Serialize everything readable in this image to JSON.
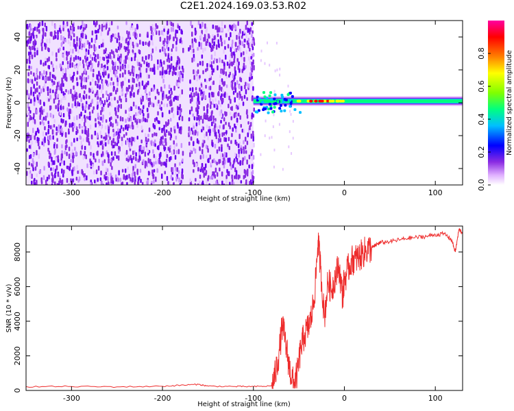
{
  "title": "C2E1.2024.169.03.53.R02",
  "chart_data": [
    {
      "type": "heatmap",
      "xlabel": "Height of straight line (km)",
      "ylabel": "Frequency (Hz)",
      "xlim": [
        -350,
        130
      ],
      "ylim": [
        -50,
        50
      ],
      "xticks": [
        -300,
        -200,
        -100,
        0,
        100
      ],
      "yticks": [
        -40,
        -20,
        0,
        20,
        40
      ],
      "colorbar": {
        "label": "Normalized spectral amplitude",
        "range": [
          0,
          1
        ],
        "ticks": [
          0.0,
          0.2,
          0.4,
          0.6,
          0.8
        ],
        "colormap": [
          "#ffffff",
          "#e0b0ff",
          "#8a2be2",
          "#0000ff",
          "#00bfff",
          "#00ff80",
          "#80ff00",
          "#ffff00",
          "#ff8000",
          "#ff0000",
          "#ff00a0"
        ]
      },
      "regions": {
        "noise_band_x": [
          -350,
          -100
        ],
        "noise_gap_x": [
          -178,
          -172
        ],
        "signal_start_x": -100,
        "signal_center_freq": 1,
        "peak_amplitude_x": [
          -40,
          -10
        ]
      }
    },
    {
      "type": "line",
      "xlabel": "Height of straight line (km)",
      "ylabel": "SNR (10 * v/v)",
      "xlim": [
        -350,
        130
      ],
      "ylim": [
        0,
        9500
      ],
      "xticks": [
        -300,
        -200,
        -100,
        0,
        100
      ],
      "yticks": [
        0,
        2000,
        4000,
        6000,
        8000
      ],
      "color": "#ee2b2b",
      "series": [
        {
          "x": [
            -350,
            -300,
            -250,
            -200,
            -180,
            -160,
            -150,
            -120,
            -100,
            -80,
            -76,
            -72,
            -68,
            -64,
            -60,
            -56,
            -52,
            -48,
            -44,
            -40,
            -36,
            -32,
            -29,
            -26,
            -22,
            -18,
            -14,
            -10,
            -6,
            -2,
            0,
            4,
            8,
            12,
            16,
            20,
            24,
            28,
            32,
            36,
            40,
            50,
            60,
            70,
            80,
            90,
            100,
            110,
            118,
            122,
            126,
            130
          ],
          "y": [
            220,
            230,
            210,
            240,
            300,
            350,
            250,
            230,
            220,
            260,
            900,
            2100,
            3800,
            2500,
            1200,
            400,
            900,
            2400,
            3200,
            3600,
            4300,
            6000,
            8700,
            7000,
            4200,
            6300,
            5800,
            6600,
            7200,
            5400,
            6400,
            7000,
            7500,
            7600,
            7700,
            7900,
            8100,
            8200,
            8300,
            8450,
            8550,
            8600,
            8700,
            8800,
            8850,
            8900,
            9000,
            9050,
            8700,
            8000,
            9300,
            9100
          ]
        }
      ]
    }
  ]
}
